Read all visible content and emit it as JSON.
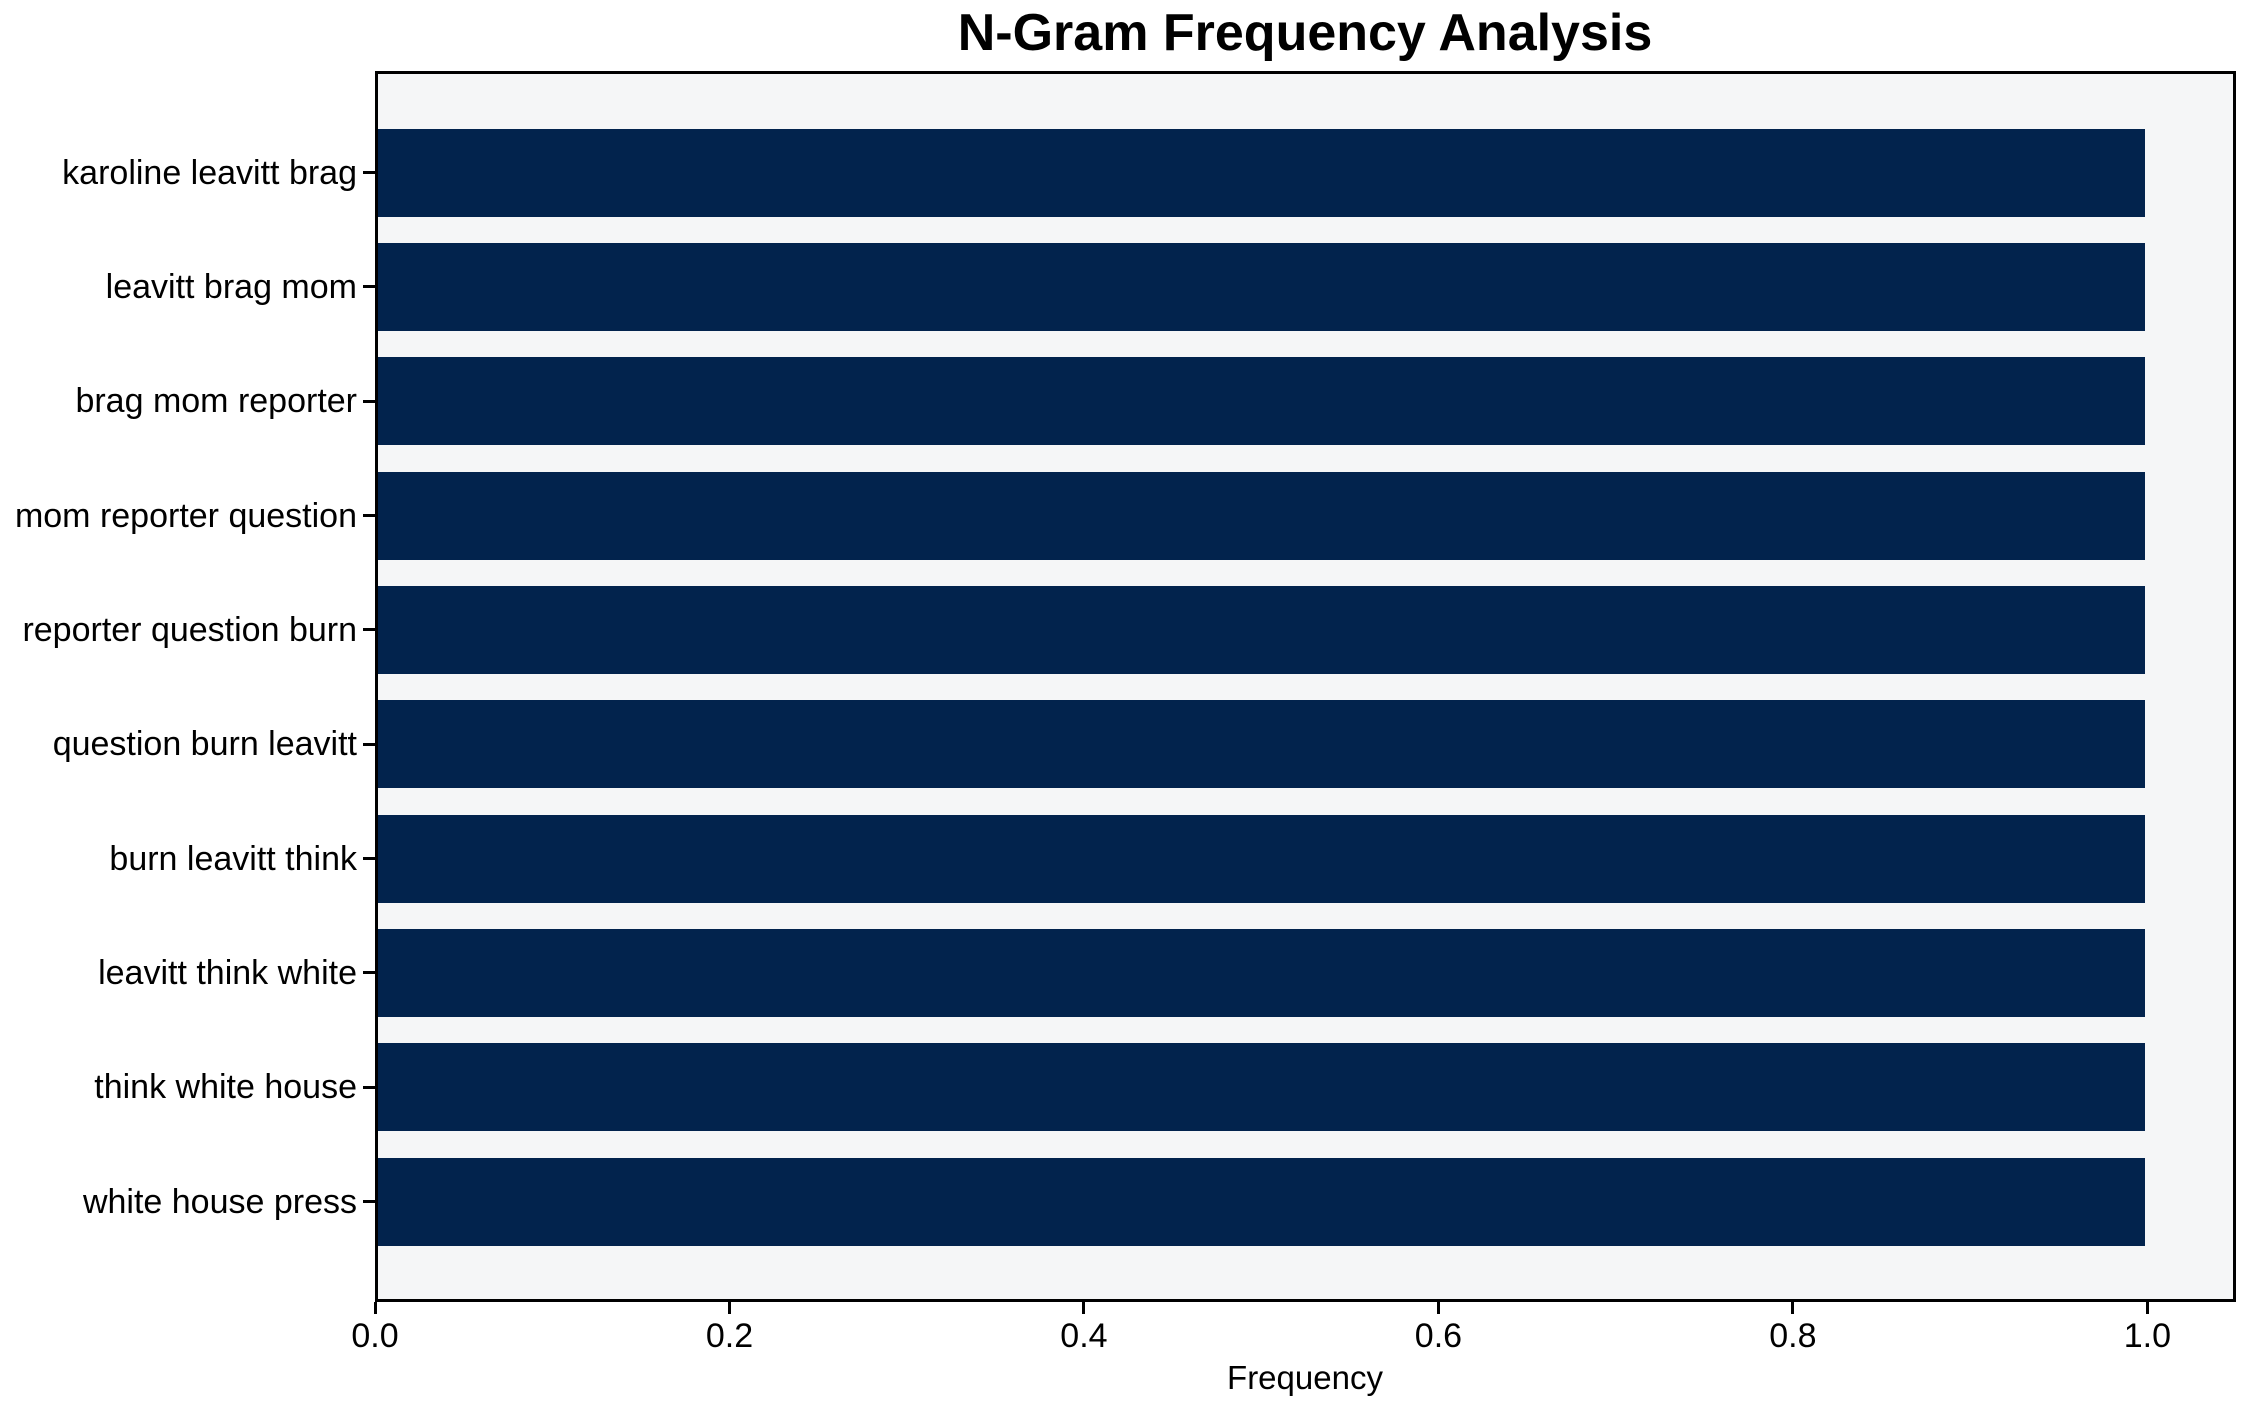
{
  "chart_data": {
    "type": "bar",
    "orientation": "horizontal",
    "title": "N-Gram Frequency Analysis",
    "xlabel": "Frequency",
    "ylabel": "",
    "categories": [
      "karoline leavitt brag",
      "leavitt brag mom",
      "brag mom reporter",
      "mom reporter question",
      "reporter question burn",
      "question burn leavitt",
      "burn leavitt think",
      "leavitt think white",
      "think white house",
      "white house press"
    ],
    "values": [
      1.0,
      1.0,
      1.0,
      1.0,
      1.0,
      1.0,
      1.0,
      1.0,
      1.0,
      1.0
    ],
    "xlim": [
      0,
      1.05
    ],
    "xticks": [
      {
        "label": "0.0",
        "value": 0.0
      },
      {
        "label": "0.2",
        "value": 0.2
      },
      {
        "label": "0.4",
        "value": 0.4
      },
      {
        "label": "0.6",
        "value": 0.6
      },
      {
        "label": "0.8",
        "value": 0.8
      },
      {
        "label": "1.0",
        "value": 1.0
      }
    ],
    "grid": false,
    "legend": null,
    "colors": {
      "bar": "#02234d",
      "plot_bg": "#f5f6f7",
      "spine": "#000000",
      "text": "#000000",
      "figure_bg": "#ffffff"
    }
  }
}
